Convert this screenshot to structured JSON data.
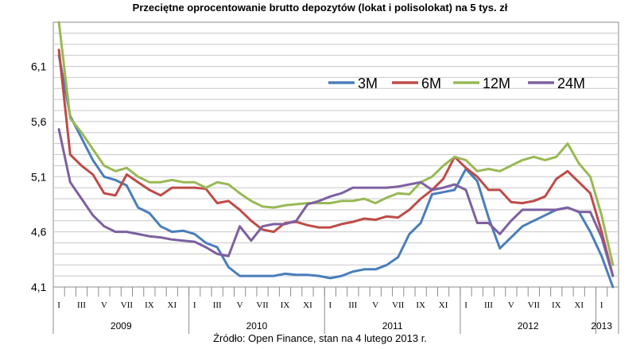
{
  "chart_data": {
    "type": "line",
    "title": "Przeciętne oprocentowanie brutto depozytów (lokat i polisolokat) na 5 tys. zł",
    "source": "Źródło: Open Finance, stan na 4 lutego 2013 r.",
    "ylim": [
      4.1,
      6.5
    ],
    "yticks": [
      "4,1",
      "4,6",
      "5,1",
      "5,6",
      "6,1"
    ],
    "ytick_values": [
      4.1,
      4.6,
      5.1,
      5.6,
      6.1
    ],
    "month_labels": [
      "I",
      "",
      "III",
      "",
      "V",
      "",
      "VII",
      "",
      "IX",
      "",
      "XI",
      "",
      "I",
      "",
      "III",
      "",
      "V",
      "",
      "VII",
      "",
      "IX",
      "",
      "XI",
      "",
      "I",
      "",
      "III",
      "",
      "V",
      "",
      "VII",
      "",
      "IX",
      "",
      "XI",
      "",
      "I",
      "",
      "III",
      "",
      "V",
      "",
      "VII",
      "",
      "IX",
      "",
      "XI",
      "",
      "I"
    ],
    "years": [
      {
        "label": "2009",
        "start": 0,
        "end": 12
      },
      {
        "label": "2010",
        "start": 12,
        "end": 24
      },
      {
        "label": "2011",
        "start": 24,
        "end": 36
      },
      {
        "label": "2012",
        "start": 36,
        "end": 48
      },
      {
        "label": "2013",
        "start": 48,
        "end": 49
      }
    ],
    "legend_position": "top-right",
    "grid": true,
    "series": [
      {
        "name": "3M",
        "color": "#4a7ebb",
        "values": [
          6.2,
          5.65,
          5.45,
          5.25,
          5.1,
          5.07,
          5.02,
          4.82,
          4.77,
          4.65,
          4.6,
          4.61,
          4.58,
          4.5,
          4.46,
          4.28,
          4.2,
          4.2,
          4.2,
          4.2,
          4.22,
          4.21,
          4.21,
          4.2,
          4.18,
          4.2,
          4.24,
          4.26,
          4.26,
          4.3,
          4.37,
          4.58,
          4.68,
          4.94,
          4.96,
          4.98,
          5.17,
          5.06,
          4.73,
          4.45,
          4.55,
          4.65,
          4.7,
          4.75,
          4.8,
          4.82,
          4.78,
          4.6,
          4.38,
          4.1
        ]
      },
      {
        "name": "6M",
        "color": "#be4b48",
        "values": [
          6.25,
          5.3,
          5.2,
          5.12,
          4.95,
          4.93,
          5.12,
          5.05,
          4.98,
          4.93,
          5.0,
          5.0,
          5.0,
          4.99,
          4.86,
          4.88,
          4.8,
          4.7,
          4.62,
          4.6,
          4.68,
          4.69,
          4.66,
          4.64,
          4.64,
          4.67,
          4.69,
          4.72,
          4.71,
          4.74,
          4.73,
          4.8,
          4.9,
          4.98,
          5.08,
          5.28,
          5.18,
          5.1,
          4.98,
          4.98,
          4.87,
          4.86,
          4.88,
          4.92,
          5.08,
          5.15,
          5.05,
          4.95,
          4.6,
          4.2
        ]
      },
      {
        "name": "12M",
        "color": "#98b954",
        "values": [
          6.5,
          5.63,
          5.5,
          5.35,
          5.2,
          5.15,
          5.18,
          5.1,
          5.05,
          5.05,
          5.07,
          5.05,
          5.05,
          5.0,
          5.05,
          5.03,
          4.95,
          4.88,
          4.83,
          4.82,
          4.84,
          4.85,
          4.86,
          4.86,
          4.86,
          4.88,
          4.88,
          4.9,
          4.86,
          4.91,
          4.95,
          4.94,
          5.05,
          5.1,
          5.2,
          5.28,
          5.25,
          5.15,
          5.17,
          5.15,
          5.2,
          5.25,
          5.28,
          5.25,
          5.28,
          5.4,
          5.22,
          5.1,
          4.75,
          4.3
        ]
      },
      {
        "name": "24M",
        "color": "#7d60a0",
        "values": [
          5.53,
          5.05,
          4.9,
          4.75,
          4.65,
          4.6,
          4.6,
          4.58,
          4.56,
          4.55,
          4.53,
          4.52,
          4.51,
          4.46,
          4.4,
          4.38,
          4.65,
          4.52,
          4.65,
          4.67,
          4.67,
          4.7,
          4.85,
          4.88,
          4.92,
          4.95,
          5.0,
          5.0,
          5.0,
          5.0,
          5.01,
          5.03,
          5.05,
          4.98,
          5.0,
          5.03,
          4.98,
          4.68,
          4.68,
          4.58,
          4.7,
          4.8,
          4.8,
          4.8,
          4.8,
          4.82,
          4.78,
          4.78,
          4.55,
          4.2
        ]
      }
    ]
  }
}
